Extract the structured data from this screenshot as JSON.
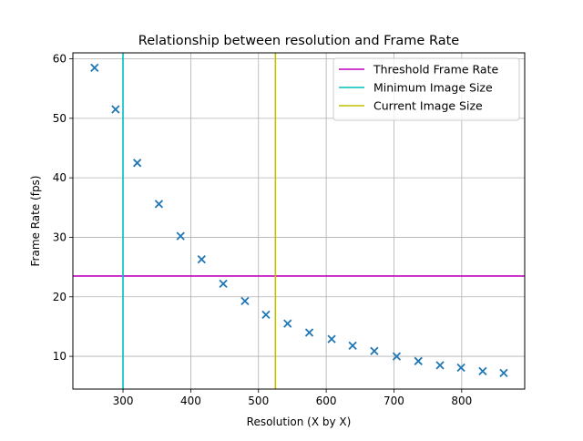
{
  "chart_data": {
    "type": "scatter",
    "title": "Relationship between resolution and Frame Rate",
    "xlabel": "Resolution (X by X)",
    "ylabel": "Frame Rate (fps)",
    "xlim": [
      226,
      893
    ],
    "ylim": [
      4.5,
      61
    ],
    "x_ticks": [
      300,
      400,
      500,
      600,
      700,
      800
    ],
    "y_ticks": [
      10,
      20,
      30,
      40,
      50,
      60
    ],
    "grid": true,
    "legend_position": "top-right",
    "series": [
      {
        "marker": "x",
        "color": "#1f77b4",
        "points": [
          {
            "x": 258,
            "y": 58.5
          },
          {
            "x": 289,
            "y": 51.5
          },
          {
            "x": 321,
            "y": 42.5
          },
          {
            "x": 353,
            "y": 35.6
          },
          {
            "x": 385,
            "y": 30.2
          },
          {
            "x": 416,
            "y": 26.3
          },
          {
            "x": 448,
            "y": 22.2
          },
          {
            "x": 480,
            "y": 19.3
          },
          {
            "x": 511,
            "y": 17.0
          },
          {
            "x": 543,
            "y": 15.5
          },
          {
            "x": 575,
            "y": 14.0
          },
          {
            "x": 608,
            "y": 12.9
          },
          {
            "x": 639,
            "y": 11.8
          },
          {
            "x": 671,
            "y": 10.9
          },
          {
            "x": 704,
            "y": 10.0
          },
          {
            "x": 736,
            "y": 9.2
          },
          {
            "x": 768,
            "y": 8.5
          },
          {
            "x": 799,
            "y": 8.1
          },
          {
            "x": 831,
            "y": 7.5
          },
          {
            "x": 862,
            "y": 7.2
          }
        ]
      }
    ],
    "reference_lines": [
      {
        "name": "Threshold Frame Rate",
        "orientation": "horizontal",
        "value": 23.5,
        "color": "#bf00bf"
      },
      {
        "name": "Minimum Image Size",
        "orientation": "vertical",
        "value": 300,
        "color": "#00bfbf"
      },
      {
        "name": "Current Image Size",
        "orientation": "vertical",
        "value": 525,
        "color": "#bfbf00"
      }
    ]
  }
}
